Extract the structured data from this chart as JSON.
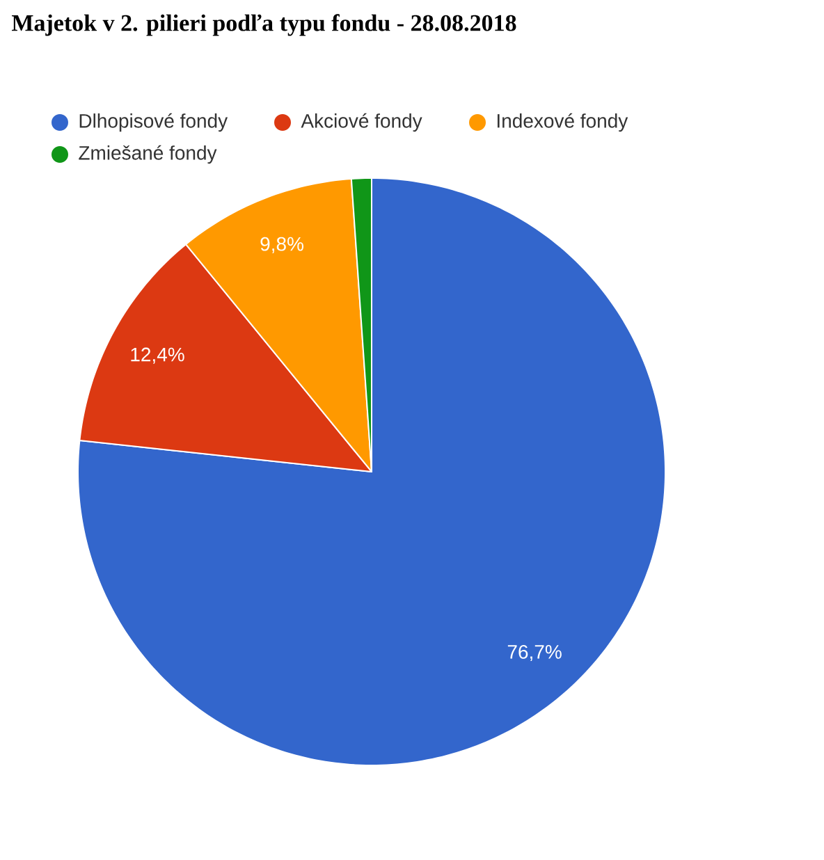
{
  "chart_data": {
    "type": "pie",
    "title": "Majetok v 2. pilieri podľa typu fondu - 28.08.2018",
    "categories": [
      "Dlhopisové fondy",
      "Akciové fondy",
      "Indexové fondy",
      "Zmiešané fondy"
    ],
    "values": [
      76.7,
      12.4,
      9.8,
      1.1
    ],
    "value_labels": [
      "76,7%",
      "12,4%",
      "9,8%",
      null
    ],
    "colors": [
      "#3366cc",
      "#dc3912",
      "#ff9900",
      "#109618"
    ],
    "legend": "top"
  }
}
